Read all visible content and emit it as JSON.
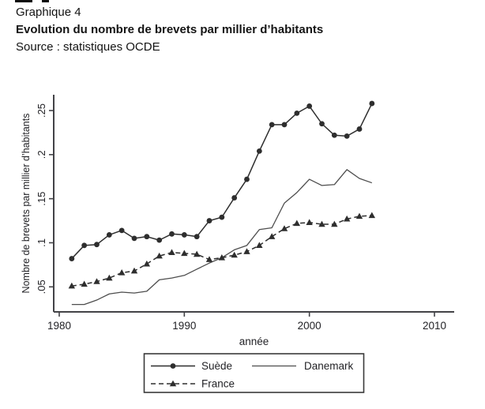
{
  "header": {
    "figure_label": "Graphique 4",
    "title": "Evolution du nombre de brevets par millier d’habitants",
    "source": "Source : statistiques OCDE"
  },
  "chart_data": {
    "type": "line",
    "title": "Evolution du nombre de brevets par millier d’habitants",
    "xlabel": "année",
    "ylabel": "Nombre de brevets par millier d’habitants",
    "x": [
      1981,
      1982,
      1983,
      1984,
      1985,
      1986,
      1987,
      1988,
      1989,
      1990,
      1991,
      1992,
      1993,
      1994,
      1995,
      1996,
      1997,
      1998,
      1999,
      2000,
      2001,
      2002,
      2003,
      2004,
      2005
    ],
    "series": [
      {
        "name": "Suède",
        "line": "solid",
        "marker": "circle",
        "color": "#2e2e2e",
        "values": [
          0.082,
          0.097,
          0.098,
          0.109,
          0.114,
          0.105,
          0.107,
          0.103,
          0.11,
          0.109,
          0.107,
          0.125,
          0.129,
          0.151,
          0.172,
          0.204,
          0.234,
          0.234,
          0.247,
          0.255,
          0.235,
          0.222,
          0.221,
          0.229,
          0.258
        ]
      },
      {
        "name": "Danemark",
        "line": "solid",
        "marker": "none",
        "color": "#4d4d4d",
        "values": [
          0.03,
          0.03,
          0.035,
          0.042,
          0.044,
          0.043,
          0.045,
          0.058,
          0.06,
          0.063,
          0.07,
          0.077,
          0.083,
          0.092,
          0.097,
          0.115,
          0.117,
          0.145,
          0.157,
          0.172,
          0.165,
          0.166,
          0.183,
          0.173,
          0.168
        ]
      },
      {
        "name": "France",
        "line": "dashed",
        "marker": "triangle",
        "color": "#2e2e2e",
        "values": [
          0.051,
          0.053,
          0.056,
          0.06,
          0.066,
          0.068,
          0.076,
          0.085,
          0.089,
          0.088,
          0.087,
          0.081,
          0.083,
          0.086,
          0.09,
          0.097,
          0.107,
          0.116,
          0.122,
          0.123,
          0.121,
          0.121,
          0.127,
          0.13,
          0.131
        ]
      }
    ],
    "xticks": {
      "values": [
        1980,
        1990,
        2000,
        2010
      ],
      "labels": [
        "1980",
        "1990",
        "2000",
        "2010"
      ]
    },
    "yticks": {
      "values": [
        0.05,
        0.1,
        0.15,
        0.2,
        0.25
      ],
      "labels": [
        ".05",
        ".1",
        ".15",
        ".2",
        ".25"
      ]
    },
    "xlim": [
      1979.6,
      2011.6
    ],
    "ylim": [
      0.021,
      0.268
    ],
    "grid": false,
    "legend": {
      "position": "bottom-box",
      "columns": 2
    }
  }
}
